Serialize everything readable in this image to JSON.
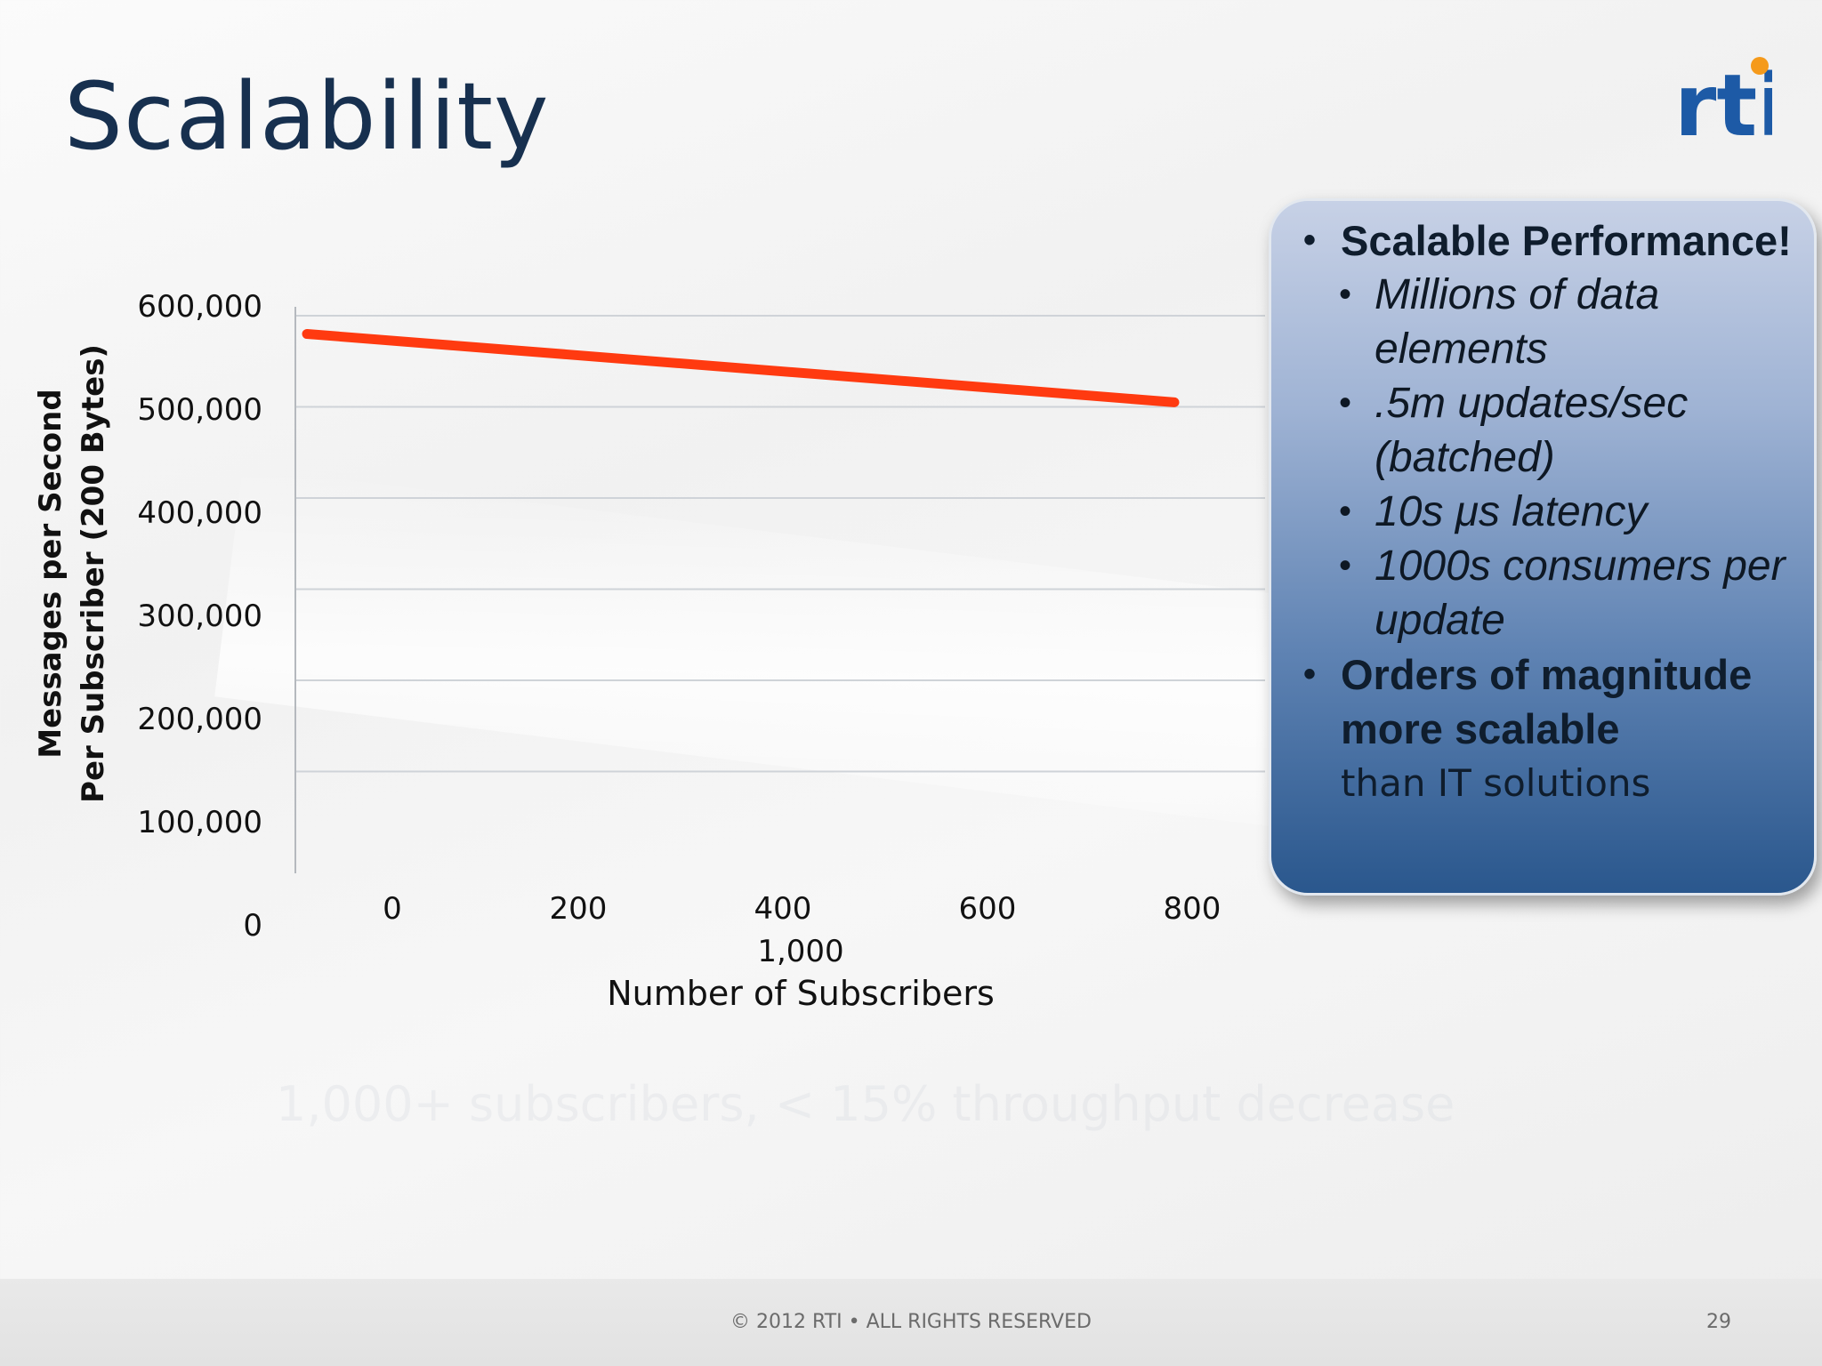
{
  "slide": {
    "title": "Scalability",
    "logo_text": "rti",
    "ghost_text": "1,000+ subscribers, < 15% throughput decrease",
    "footer": "© 2012 RTI • ALL RIGHTS RESERVED",
    "page_number": "29"
  },
  "panel": {
    "items": [
      {
        "label": "Scalable Performance!",
        "style": "bold"
      },
      {
        "label": "Millions of data elements",
        "style": "sub"
      },
      {
        "label": ".5m updates/sec (batched)",
        "style": "sub"
      },
      {
        "label": "10s μs latency",
        "style": "sub"
      },
      {
        "label": "1000s consumers per update",
        "style": "sub"
      },
      {
        "label": "Orders of magnitude more scalable",
        "tail": "than IT solutions",
        "style": "bold"
      }
    ]
  },
  "colors": {
    "line": "#ff3a10",
    "title": "#17304f",
    "logo_blue": "#1d5aa6",
    "logo_orange": "#f59a1b"
  },
  "chart_data": {
    "type": "line",
    "xlabel": "Number of Subscribers",
    "ylabel": [
      "Messages per Second",
      "Per Subscriber (200 Bytes)"
    ],
    "y_ticks": [
      "0",
      "100,000",
      "200,000",
      "300,000",
      "400,000",
      "500,000",
      "600,000"
    ],
    "x_ticks": [
      "0",
      "200",
      "400",
      "600",
      "800",
      "1,000"
    ],
    "ylim": [
      0,
      600000
    ],
    "xlim": [
      0,
      1000
    ],
    "grid": true,
    "series": [
      {
        "x": [
          0,
          1000
        ],
        "y": [
          580000,
          505000
        ]
      }
    ]
  }
}
